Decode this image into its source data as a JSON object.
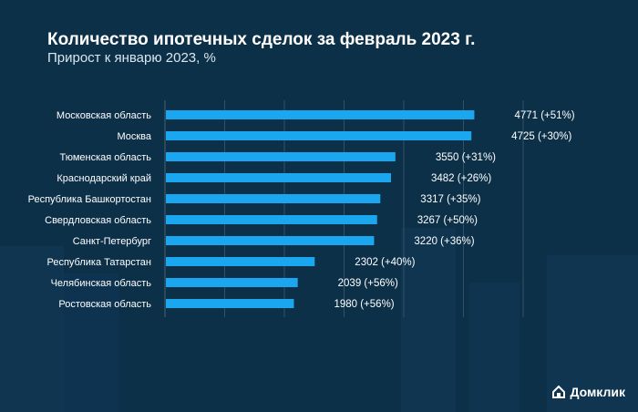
{
  "title": "Количество ипотечных сделок за февраль 2023 г.",
  "subtitle": "Прирост к январю 2023, %",
  "brand": "Домклик",
  "colors": {
    "background": "#0d3049",
    "bar": "#1aa7f0",
    "label": "#ffffff",
    "grid": "#3c5a70"
  },
  "chart_data": {
    "type": "bar",
    "orientation": "horizontal",
    "categories": [
      "Московская область",
      "Москва",
      "Тюменская область",
      "Краснодарский край",
      "Республика Башкортостан",
      "Свердловская область",
      "Санкт-Петербург",
      "Республика Татарстан",
      "Челябинская область",
      "Ростовская область"
    ],
    "values": [
      4771,
      4725,
      3550,
      3482,
      3317,
      3267,
      3220,
      2302,
      2039,
      1980
    ],
    "data_labels": [
      "4771 (+51%)",
      "4725 (+30%)",
      "3550 (+31%)",
      "3482 (+26%)",
      "3317 (+35%)",
      "3267 (+50%)",
      "3220 (+36%)",
      "2302 (+40%)",
      "2039 (+56%)",
      "1980 (+56%)"
    ],
    "xlim": [
      0,
      6400
    ],
    "grid": true
  }
}
